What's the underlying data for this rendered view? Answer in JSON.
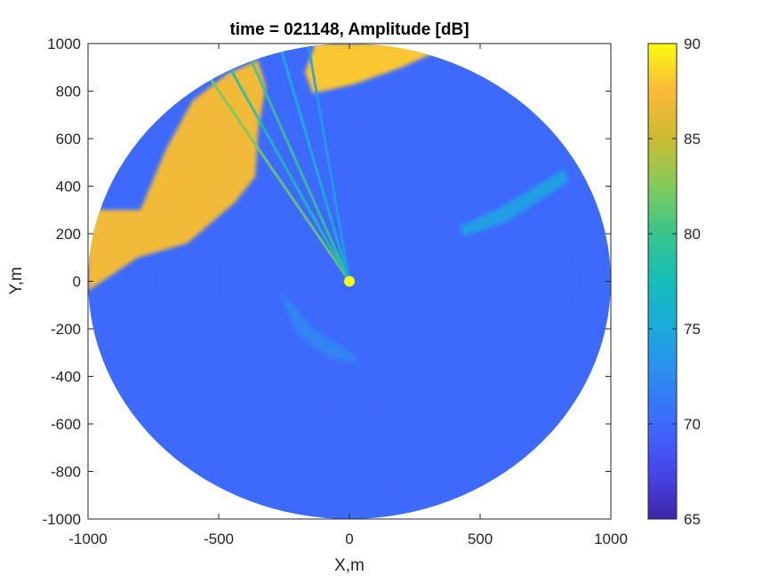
{
  "chart_data": {
    "type": "heatmap",
    "projection": "polar",
    "title": "time = 021148, Amplitude [dB]",
    "xlabel": "X,m",
    "ylabel": "Y,m",
    "xlim": [
      -1000,
      1000
    ],
    "ylim": [
      -1000,
      1000
    ],
    "xticks": [
      -1000,
      -500,
      0,
      500,
      1000
    ],
    "yticks": [
      -1000,
      -800,
      -600,
      -400,
      -200,
      0,
      200,
      400,
      600,
      800,
      1000
    ],
    "xtick_labels": [
      "-1000",
      "-500",
      "0",
      "500",
      "1000"
    ],
    "ytick_labels": [
      "-1000",
      "-800",
      "-600",
      "-400",
      "-200",
      "0",
      "200",
      "400",
      "600",
      "800",
      "1000"
    ],
    "range_max_m": 1000,
    "colorbar": {
      "colormap": "parula",
      "clim": [
        65,
        90
      ],
      "ticks": [
        65,
        70,
        75,
        80,
        85,
        90
      ],
      "tick_labels": [
        "65",
        "70",
        "75",
        "80",
        "85",
        "90"
      ],
      "stops": [
        {
          "value": 0.0,
          "color": "#3E26A8"
        },
        {
          "value": 0.1,
          "color": "#4746EB"
        },
        {
          "value": 0.2,
          "color": "#3D6AFD"
        },
        {
          "value": 0.3,
          "color": "#2D8BEF"
        },
        {
          "value": 0.4,
          "color": "#1CAADF"
        },
        {
          "value": 0.5,
          "color": "#14BDB8"
        },
        {
          "value": 0.6,
          "color": "#38C58C"
        },
        {
          "value": 0.7,
          "color": "#82CB5B"
        },
        {
          "value": 0.8,
          "color": "#CCBB2F"
        },
        {
          "value": 0.9,
          "color": "#FABA39"
        },
        {
          "value": 1.0,
          "color": "#F9FB0E"
        }
      ]
    },
    "background_level_db": 70,
    "regions": [
      {
        "name": "north-west shoreline",
        "level_db": 87,
        "polygon": [
          [
            -800,
            300
          ],
          [
            -700,
            560
          ],
          [
            -600,
            760
          ],
          [
            -470,
            870
          ],
          [
            -350,
            930
          ],
          [
            -320,
            820
          ],
          [
            -350,
            630
          ],
          [
            -360,
            440
          ],
          [
            -440,
            330
          ],
          [
            -620,
            160
          ],
          [
            -810,
            100
          ],
          [
            -1000,
            -40
          ],
          [
            -1000,
            300
          ]
        ]
      },
      {
        "name": "north shoreline",
        "level_db": 88,
        "polygon": [
          [
            -130,
            1000
          ],
          [
            300,
            1000
          ],
          [
            320,
            960
          ],
          [
            200,
            900
          ],
          [
            20,
            830
          ],
          [
            -140,
            790
          ],
          [
            -170,
            880
          ]
        ]
      },
      {
        "name": "south-west arc",
        "level_db": 72,
        "polygon": [
          [
            -270,
            -40
          ],
          [
            -200,
            -220
          ],
          [
            -80,
            -320
          ],
          [
            40,
            -350
          ],
          [
            10,
            -300
          ],
          [
            -140,
            -200
          ],
          [
            -220,
            -90
          ]
        ]
      },
      {
        "name": "east band",
        "level_db": 74,
        "polygon": [
          [
            420,
            230
          ],
          [
            560,
            300
          ],
          [
            820,
            470
          ],
          [
            840,
            420
          ],
          [
            600,
            250
          ],
          [
            440,
            190
          ]
        ]
      }
    ],
    "rays": [
      {
        "azimuth_deg": -32,
        "length_m": 1000,
        "level_db": 82
      },
      {
        "azimuth_deg": -27,
        "length_m": 1000,
        "level_db": 78
      },
      {
        "azimuth_deg": -22,
        "length_m": 1000,
        "level_db": 80
      },
      {
        "azimuth_deg": -15,
        "length_m": 1000,
        "level_db": 76
      },
      {
        "azimuth_deg": -9,
        "length_m": 1000,
        "level_db": 74
      }
    ]
  }
}
